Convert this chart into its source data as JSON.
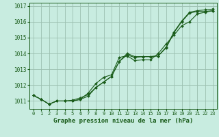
{
  "title": "Graphe pression niveau de la mer (hPa)",
  "background_color": "#c8ece0",
  "grid_color": "#9bbfb0",
  "line_color": "#1a5c1a",
  "marker_color": "#1a5c1a",
  "xlim": [
    -0.5,
    23.5
  ],
  "ylim": [
    1010.5,
    1017.2
  ],
  "yticks": [
    1011,
    1012,
    1013,
    1014,
    1015,
    1016,
    1017
  ],
  "xticks": [
    0,
    1,
    2,
    3,
    4,
    5,
    6,
    7,
    8,
    9,
    10,
    11,
    12,
    13,
    14,
    15,
    16,
    17,
    18,
    19,
    20,
    21,
    22,
    23
  ],
  "series1": [
    1011.35,
    1011.1,
    1010.8,
    1011.0,
    1011.0,
    1011.0,
    1011.1,
    1011.3,
    1011.85,
    1012.2,
    1012.55,
    1013.5,
    1013.9,
    1013.75,
    1013.8,
    1013.8,
    1013.85,
    1014.35,
    1015.3,
    1016.0,
    1016.55,
    1016.65,
    1016.65,
    1016.7
  ],
  "series2": [
    1011.35,
    1011.1,
    1010.8,
    1011.0,
    1011.0,
    1011.0,
    1011.1,
    1011.5,
    1012.1,
    1012.5,
    1012.65,
    1013.75,
    1013.85,
    1013.55,
    1013.6,
    1013.6,
    1014.0,
    1014.6,
    1015.15,
    1015.75,
    1016.0,
    1016.5,
    1016.6,
    1016.7
  ],
  "series3": [
    1011.35,
    1011.1,
    1010.8,
    1011.0,
    1011.0,
    1011.05,
    1011.2,
    1011.4,
    1011.85,
    1012.2,
    1012.55,
    1013.5,
    1014.0,
    1013.8,
    1013.8,
    1013.8,
    1013.85,
    1014.4,
    1015.35,
    1016.05,
    1016.6,
    1016.7,
    1016.75,
    1016.8
  ]
}
